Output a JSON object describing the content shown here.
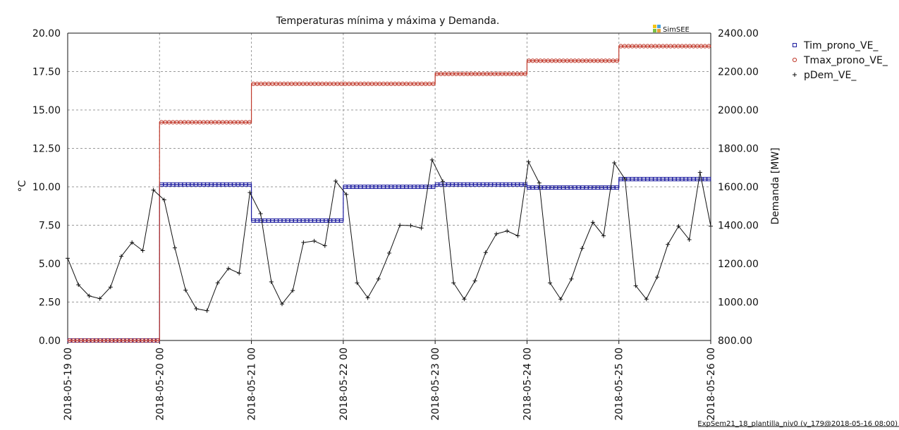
{
  "chart_data": {
    "type": "line",
    "title": "Temperaturas mínima y máxima y Demanda.",
    "ylabel": "°C",
    "y2label": "Demanda [MW]",
    "ylim": [
      0,
      20
    ],
    "y2lim": [
      800,
      2400
    ],
    "yticks": [
      "0.00",
      "2.50",
      "5.00",
      "7.50",
      "10.00",
      "12.50",
      "15.00",
      "17.50",
      "20.00"
    ],
    "y2ticks": [
      "800.00",
      "1000.00",
      "1200.00",
      "1400.00",
      "1600.00",
      "1800.00",
      "2000.00",
      "2200.00",
      "2400.00"
    ],
    "xticks": [
      "2018-05-19 00",
      "2018-05-20 00",
      "2018-05-21 00",
      "2018-05-22 00",
      "2018-05-23 00",
      "2018-05-24 00",
      "2018-05-25 00",
      "2018-05-26 00"
    ],
    "grid": true,
    "legend_position": "right",
    "series": [
      {
        "name": "Tim_prono_VE_",
        "axis": "left",
        "color": "#1a1a9e",
        "marker": "square",
        "step": true,
        "values": [
          0,
          10.15,
          7.8,
          10.0,
          10.15,
          9.95,
          10.5
        ]
      },
      {
        "name": "Tmax_prono_VE_",
        "axis": "left",
        "color": "#c0392b",
        "marker": "diamond",
        "step": true,
        "values": [
          0,
          14.2,
          16.7,
          16.7,
          17.35,
          18.2,
          19.15
        ]
      },
      {
        "name": "pDem_VE_",
        "axis": "right",
        "color": "#111111",
        "marker": "plus",
        "values": [
          1228,
          1090,
          1032,
          1018,
          1078,
          1238,
          1310,
          1268,
          1583,
          1532,
          1282,
          1062,
          965,
          955,
          1100,
          1175,
          1150,
          1570,
          1460,
          1105,
          990,
          1060,
          1310,
          1318,
          1293,
          1630,
          1560,
          1100,
          1022,
          1120,
          1255,
          1400,
          1398,
          1385,
          1740,
          1628,
          1100,
          1015,
          1110,
          1258,
          1355,
          1370,
          1345,
          1730,
          1620,
          1100,
          1015,
          1120,
          1280,
          1415,
          1345,
          1725,
          1640,
          1085,
          1015,
          1130,
          1300,
          1395,
          1325,
          1675,
          1395
        ]
      }
    ]
  },
  "brand": {
    "label": "SimSEE",
    "colors": [
      "#f5c518",
      "#4aa3df",
      "#7cc242",
      "#e8a33a"
    ]
  },
  "footer": {
    "text": "ExpSem21_18_plantilla_niv0 (v_179@2018-05-16 08:00)"
  }
}
